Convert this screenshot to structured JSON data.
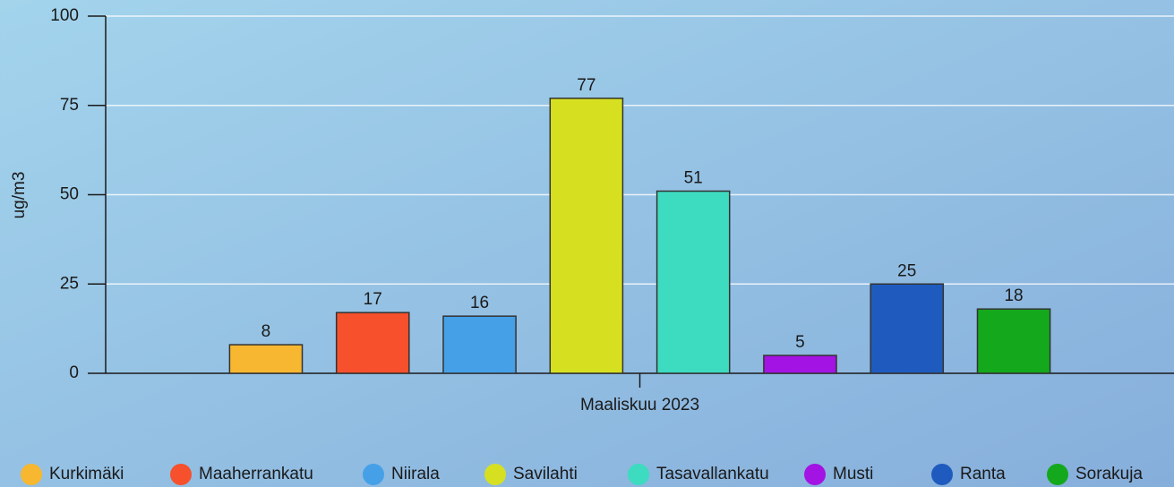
{
  "chart_data": {
    "type": "bar",
    "y_label": "ug/m3",
    "categories": [
      "Maaliskuu 2023"
    ],
    "series": [
      {
        "name": "Kurkimäki",
        "color": "#f7b731",
        "values": [
          8
        ]
      },
      {
        "name": "Maaherrankatu",
        "color": "#f6502c",
        "values": [
          17
        ]
      },
      {
        "name": "Niirala",
        "color": "#45a0e8",
        "values": [
          16
        ]
      },
      {
        "name": "Savilahti",
        "color": "#d6e021",
        "values": [
          77
        ]
      },
      {
        "name": "Tasavallankatu",
        "color": "#3ddbc0",
        "values": [
          51
        ]
      },
      {
        "name": "Musti",
        "color": "#a313e3",
        "values": [
          5
        ]
      },
      {
        "name": "Ranta",
        "color": "#1f5bbf",
        "values": [
          25
        ]
      },
      {
        "name": "Sorakuja",
        "color": "#14a81c",
        "values": [
          18
        ]
      }
    ],
    "ylim": [
      0,
      100
    ],
    "yticks": [
      0,
      25,
      50,
      75,
      100
    ],
    "grid": true,
    "legend": "bottom"
  }
}
